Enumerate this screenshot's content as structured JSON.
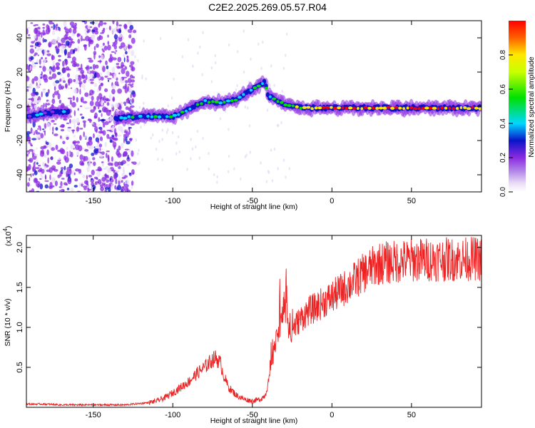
{
  "page_title": "C2E2.2025.269.05.57.R04",
  "colors": {
    "axis": "#000000",
    "snr_line": "#ee2222",
    "spectrum_low": "#e9ddf5",
    "spectrum_purple": "#8a2be2",
    "spectrum_blue": "#0a14c8",
    "spectrum_cyan": "#00d8ff",
    "spectrum_green": "#00e000",
    "spectrum_yellow": "#ffe800",
    "spectrum_red": "#ff0000"
  },
  "chart_data": [
    {
      "type": "heatmap",
      "title": "C2E2.2025.269.05.57.R04",
      "xlabel": "Height of straight line (km)",
      "ylabel": "Frequency (Hz)",
      "xlim": [
        -192,
        94
      ],
      "ylim": [
        -50,
        50
      ],
      "x_ticks": [
        -150,
        -100,
        -50,
        0,
        50
      ],
      "y_ticks": [
        -40,
        -20,
        0,
        20,
        40
      ],
      "colorbar": {
        "label": "Normalized spectral amplitude",
        "range": [
          0,
          1
        ],
        "ticks": [
          0.0,
          0.2,
          0.4,
          0.6,
          0.8
        ],
        "tick_labels": [
          "0.0",
          "0.2",
          "0.4",
          "0.6",
          "0.8"
        ],
        "colormap": "rainbow (white-lavender → purple → blue → cyan → green → yellow → red)"
      },
      "ridge": [
        {
          "x": -190,
          "freq": -6,
          "amp": 0.3
        },
        {
          "x": -180,
          "freq": -4,
          "amp": 0.35
        },
        {
          "x": -170,
          "freq": -3,
          "amp": 0.3
        },
        {
          "x": -135,
          "freq": -7,
          "amp": 0.4
        },
        {
          "x": -120,
          "freq": -6,
          "amp": 0.4
        },
        {
          "x": -100,
          "freq": -6,
          "amp": 0.45
        },
        {
          "x": -90,
          "freq": -2,
          "amp": 0.45
        },
        {
          "x": -80,
          "freq": 3,
          "amp": 0.45
        },
        {
          "x": -70,
          "freq": 2,
          "amp": 0.5
        },
        {
          "x": -60,
          "freq": 4,
          "amp": 0.5
        },
        {
          "x": -50,
          "freq": 10,
          "amp": 0.45
        },
        {
          "x": -42,
          "freq": 14,
          "amp": 0.45
        },
        {
          "x": -40,
          "freq": 6,
          "amp": 0.5
        },
        {
          "x": -30,
          "freq": 1,
          "amp": 0.55
        },
        {
          "x": -20,
          "freq": -1,
          "amp": 0.7
        },
        {
          "x": 0,
          "freq": -1,
          "amp": 0.9
        },
        {
          "x": 20,
          "freq": -1,
          "amp": 0.85
        },
        {
          "x": 50,
          "freq": -1,
          "amp": 0.9
        },
        {
          "x": 90,
          "freq": -1,
          "amp": 0.85
        }
      ]
    },
    {
      "type": "line",
      "xlabel": "Height of straight line (km)",
      "ylabel": "SNR (10 * v/v)",
      "y_multiplier_label": "(x10",
      "y_multiplier_exponent": "4",
      "y_multiplier_close": ")",
      "xlim": [
        -192,
        94
      ],
      "ylim": [
        0,
        2.15
      ],
      "x_ticks": [
        -150,
        -100,
        -50,
        0,
        50
      ],
      "y_ticks": [
        0.5,
        1.0,
        1.5,
        2.0
      ],
      "y_tick_labels": [
        "0.5",
        "1.0",
        "1.5",
        "2.0"
      ],
      "series": [
        {
          "x": [
            -190,
            -180,
            -170,
            -160,
            -150,
            -140,
            -130,
            -125,
            -120,
            -115,
            -110,
            -105,
            -100,
            -95,
            -90,
            -85,
            -80,
            -76,
            -73,
            -70,
            -68,
            -65,
            -60,
            -55,
            -50,
            -45,
            -42,
            -40,
            -38,
            -36,
            -34,
            -32,
            -30,
            -28,
            -26,
            -24,
            -22,
            -20,
            -15,
            -10,
            -5,
            0,
            5,
            10,
            15,
            20,
            25,
            30,
            40,
            50,
            60,
            70,
            80,
            90,
            93
          ],
          "y": [
            0.04,
            0.04,
            0.03,
            0.03,
            0.03,
            0.03,
            0.03,
            0.04,
            0.05,
            0.06,
            0.08,
            0.12,
            0.18,
            0.25,
            0.32,
            0.42,
            0.5,
            0.58,
            0.62,
            0.55,
            0.4,
            0.25,
            0.15,
            0.1,
            0.08,
            0.1,
            0.15,
            0.3,
            0.55,
            0.75,
            0.9,
            1.05,
            1.3,
            1.0,
            0.95,
            1.0,
            1.05,
            1.1,
            1.2,
            1.25,
            1.32,
            1.38,
            1.45,
            1.52,
            1.6,
            1.68,
            1.75,
            1.8,
            1.82,
            1.84,
            1.85,
            1.85,
            1.85,
            1.86,
            1.85
          ]
        }
      ]
    }
  ]
}
